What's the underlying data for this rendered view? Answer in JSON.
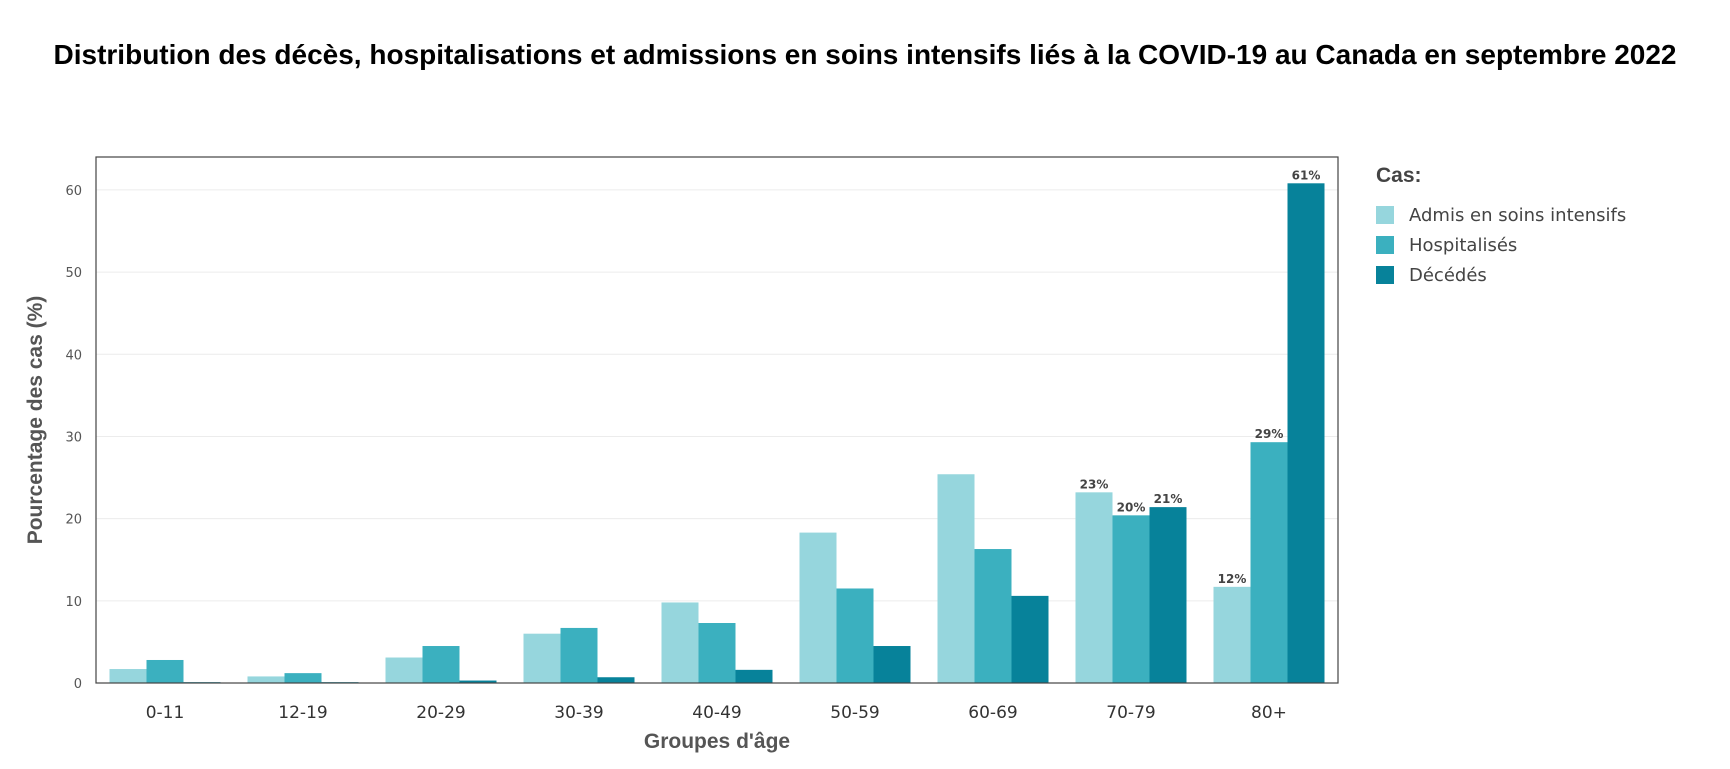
{
  "chart_data": {
    "type": "bar",
    "title": "Distribution des décès, hospitalisations et admissions en soins intensifs liés à la COVID-19 au Canada en septembre 2022",
    "xlabel": "Groupes d'âge",
    "ylabel": "Pourcentage des cas (%)",
    "ylim": [
      0,
      64
    ],
    "yticks": [
      0,
      10,
      20,
      30,
      40,
      50,
      60
    ],
    "grid": true,
    "legend_title": "Cas:",
    "legend_position": "right",
    "categories": [
      "0-11",
      "12-19",
      "20-29",
      "30-39",
      "40-49",
      "50-59",
      "60-69",
      "70-79",
      "80+"
    ],
    "series": [
      {
        "name": "Admis en soins intensifs",
        "color": "#96d6dd",
        "values": [
          1.7,
          0.8,
          3.1,
          6.0,
          9.8,
          18.3,
          25.4,
          23.2,
          11.7
        ]
      },
      {
        "name": "Hospitalisés",
        "color": "#3bb0bf",
        "values": [
          2.8,
          1.2,
          4.5,
          6.7,
          7.3,
          11.5,
          16.3,
          20.4,
          29.3
        ]
      },
      {
        "name": "Décédés",
        "color": "#07829a",
        "values": [
          0.1,
          0.1,
          0.3,
          0.7,
          1.6,
          4.5,
          10.6,
          21.4,
          60.8
        ]
      }
    ],
    "data_labels": [
      {
        "category": "70-79",
        "series": 0,
        "text": "23%"
      },
      {
        "category": "70-79",
        "series": 1,
        "text": "20%"
      },
      {
        "category": "70-79",
        "series": 2,
        "text": "21%"
      },
      {
        "category": "80+",
        "series": 0,
        "text": "12%"
      },
      {
        "category": "80+",
        "series": 1,
        "text": "29%"
      },
      {
        "category": "80+",
        "series": 2,
        "text": "61%"
      }
    ]
  }
}
